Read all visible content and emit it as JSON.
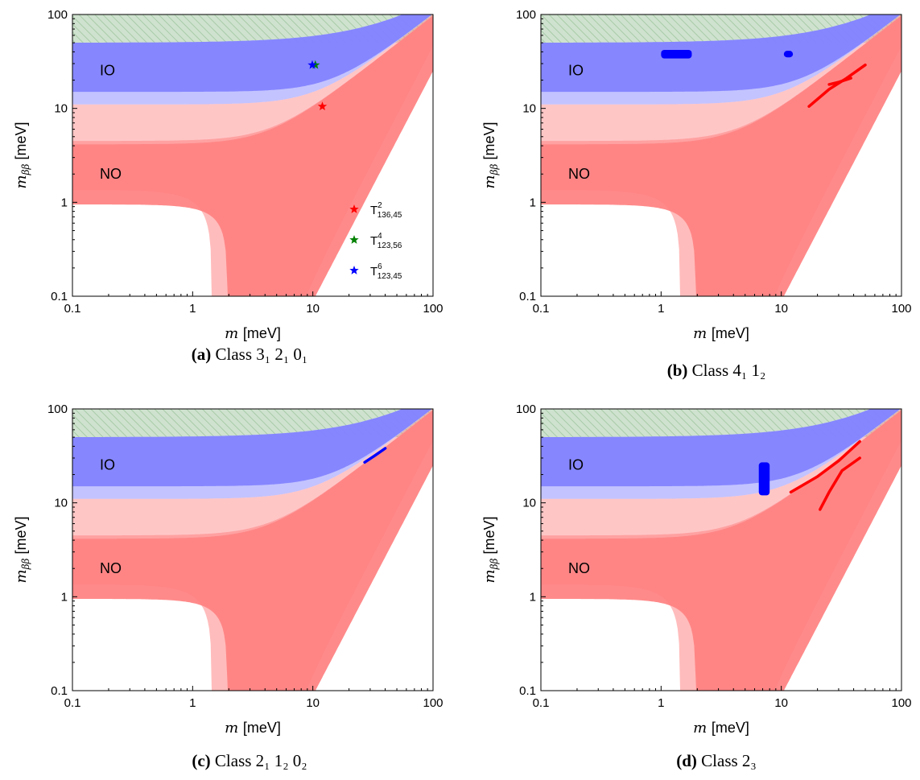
{
  "figure": {
    "colors": {
      "no_band_light": "#ffbcbc",
      "no_band_dark": "#ff8080",
      "io_band_light": "#b9b9ff",
      "io_band_dark": "#8080ff",
      "excluded_band": "#cfe2cf",
      "hatch": "#a8cba8",
      "red_points": "#ff0000",
      "green_points": "#008000",
      "blue_points": "#0000ff"
    },
    "panels": [
      {
        "id": "a",
        "caption_label": "(a)",
        "caption_text": "Class 3₁ 2₁ 0₁",
        "region_labels": {
          "io": "IO",
          "no": "NO"
        },
        "legend": [
          {
            "label": "T",
            "sup": "2",
            "sub": "136,45",
            "color": "#ff0000",
            "icon": "star-icon"
          },
          {
            "label": "T",
            "sup": "4",
            "sub": "123,56",
            "color": "#008000",
            "icon": "star-icon"
          },
          {
            "label": "T",
            "sup": "6",
            "sub": "123,45",
            "color": "#0000ff",
            "icon": "star-icon"
          }
        ]
      },
      {
        "id": "b",
        "caption_label": "(b)",
        "caption_text": "Class 4₁ 1₂",
        "region_labels": {
          "io": "IO",
          "no": "NO"
        },
        "legend": []
      },
      {
        "id": "c",
        "caption_label": "(c)",
        "caption_text": "Class 2₁ 1₂ 0₂",
        "region_labels": {
          "io": "IO",
          "no": "NO"
        },
        "legend": []
      },
      {
        "id": "d",
        "caption_label": "(d)",
        "caption_text": "Class 2₃",
        "region_labels": {
          "io": "IO",
          "no": "NO"
        },
        "legend": []
      }
    ],
    "axes": {
      "xlabel_var": "m",
      "xlabel_unit": "[meV]",
      "ylabel_var": "m",
      "ylabel_sub": "ββ",
      "ylabel_unit": "[meV]",
      "tick_labels": [
        "0.1",
        "1",
        "10",
        "100"
      ]
    }
  },
  "chart_data": [
    {
      "type": "scatter",
      "panel": "a",
      "xlabel": "m [meV]",
      "ylabel": "m_ββ [meV]",
      "xscale": "log",
      "yscale": "log",
      "xlim": [
        0.1,
        100
      ],
      "ylim": [
        0.1,
        100
      ],
      "xticks": [
        "0.1",
        "1",
        "10",
        "100"
      ],
      "yticks": [
        "0.1",
        "1",
        "10",
        "100"
      ],
      "bands": [
        {
          "name": "NO",
          "fill": "red",
          "meaning": "normal ordering allowed region"
        },
        {
          "name": "IO",
          "fill": "blue",
          "meaning": "inverted ordering allowed region"
        },
        {
          "name": "excluded",
          "fill": "hatched green",
          "y_min": 50,
          "y_max": 100
        }
      ],
      "series": [
        {
          "name": "T^2_{136,45}",
          "color": "#ff0000",
          "marker": "star",
          "points": [
            [
              12,
              10.5
            ]
          ]
        },
        {
          "name": "T^4_{123,56}",
          "color": "#008000",
          "marker": "star",
          "points": [
            [
              10.5,
              29
            ]
          ]
        },
        {
          "name": "T^6_{123,45}",
          "color": "#0000ff",
          "marker": "star",
          "points": [
            [
              9.9,
              29
            ]
          ]
        }
      ],
      "annotations": [
        "IO",
        "NO"
      ],
      "legend_position": "right"
    },
    {
      "type": "scatter",
      "panel": "b",
      "xlabel": "m [meV]",
      "ylabel": "m_ββ [meV]",
      "xscale": "log",
      "yscale": "log",
      "xlim": [
        0.1,
        100
      ],
      "ylim": [
        0.1,
        100
      ],
      "series": [
        {
          "color": "#0000ff",
          "shape": "blob",
          "x_range": [
            1.0,
            1.8
          ],
          "y_range": [
            34,
            42
          ]
        },
        {
          "color": "#0000ff",
          "shape": "blob",
          "x_range": [
            10.5,
            12.5
          ],
          "y_range": [
            35,
            41
          ]
        },
        {
          "color": "#ff0000",
          "shape": "curve",
          "points": [
            [
              17,
              10.5
            ],
            [
              25,
              16
            ],
            [
              35,
              21
            ],
            [
              50,
              29
            ]
          ]
        },
        {
          "color": "#ff0000",
          "shape": "curve",
          "points": [
            [
              25,
              18
            ],
            [
              30,
              19
            ],
            [
              38,
              21
            ]
          ]
        }
      ],
      "annotations": [
        "IO",
        "NO"
      ]
    },
    {
      "type": "scatter",
      "panel": "c",
      "xlabel": "m [meV]",
      "ylabel": "m_ββ [meV]",
      "xscale": "log",
      "yscale": "log",
      "xlim": [
        0.1,
        100
      ],
      "ylim": [
        0.1,
        100
      ],
      "series": [
        {
          "color": "#0000ff",
          "shape": "curve",
          "points": [
            [
              27,
              27
            ],
            [
              33,
              32
            ],
            [
              40,
              38
            ]
          ]
        }
      ],
      "annotations": [
        "IO",
        "NO"
      ]
    },
    {
      "type": "scatter",
      "panel": "d",
      "xlabel": "m [meV]",
      "ylabel": "m_ββ [meV]",
      "xscale": "log",
      "yscale": "log",
      "xlim": [
        0.1,
        100
      ],
      "ylim": [
        0.1,
        100
      ],
      "series": [
        {
          "color": "#0000ff",
          "shape": "blob",
          "x_range": [
            6.5,
            8.0
          ],
          "y_range": [
            12,
            27
          ]
        },
        {
          "color": "#ff0000",
          "shape": "curve",
          "points": [
            [
              12,
              13
            ],
            [
              20,
              19
            ],
            [
              30,
              28
            ],
            [
              45,
              45
            ]
          ]
        },
        {
          "color": "#ff0000",
          "shape": "curve",
          "points": [
            [
              21,
              8.5
            ],
            [
              25,
              13
            ],
            [
              32,
              22
            ],
            [
              45,
              30
            ]
          ]
        }
      ],
      "annotations": [
        "IO",
        "NO"
      ]
    }
  ]
}
